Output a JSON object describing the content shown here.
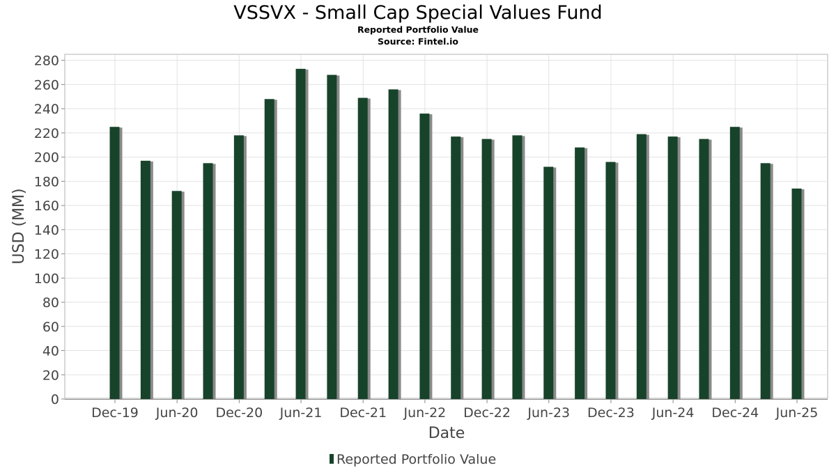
{
  "chart_data": {
    "type": "bar",
    "title": "VSSVX - Small Cap Special Values Fund",
    "subtitle": "Reported Portfolio Value",
    "source": "Source: Fintel.io",
    "xlabel": "Date",
    "ylabel": "USD (MM)",
    "ylim": [
      0,
      285
    ],
    "yticks": [
      0,
      20,
      40,
      60,
      80,
      100,
      120,
      140,
      160,
      180,
      200,
      220,
      240,
      260,
      280
    ],
    "x_tick_labels": [
      "Dec-19",
      "Jun-20",
      "Dec-20",
      "Jun-21",
      "Dec-21",
      "Jun-22",
      "Dec-22",
      "Jun-23",
      "Dec-23",
      "Jun-24",
      "Dec-24",
      "Jun-25"
    ],
    "grid": true,
    "legend_position": "bottom-center",
    "bar_color": "#17432a",
    "shadow_color": "#8a8a8a",
    "series": [
      {
        "name": "Reported Portfolio Value",
        "dates": [
          "2019-11-30",
          "2020-02-29",
          "2020-05-31",
          "2020-08-31",
          "2020-11-30",
          "2021-02-28",
          "2021-05-31",
          "2021-08-31",
          "2021-11-30",
          "2022-02-28",
          "2022-05-31",
          "2022-08-31",
          "2022-11-30",
          "2023-02-28",
          "2023-05-31",
          "2023-08-31",
          "2023-11-30",
          "2024-02-29",
          "2024-05-31",
          "2024-08-31",
          "2024-11-30",
          "2025-02-28",
          "2025-05-31"
        ],
        "values": [
          225,
          197,
          172,
          195,
          218,
          248,
          273,
          268,
          249,
          256,
          236,
          217,
          215,
          218,
          192,
          208,
          196,
          219,
          217,
          215,
          225,
          195,
          174
        ]
      }
    ]
  }
}
